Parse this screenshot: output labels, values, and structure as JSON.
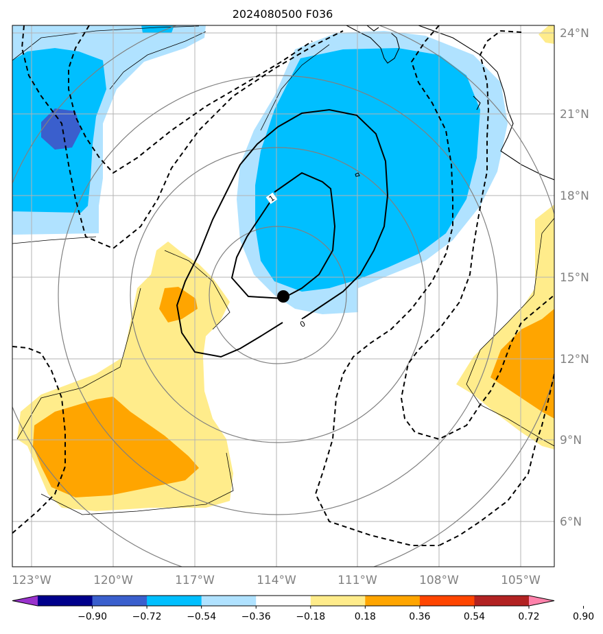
{
  "title": "2024080500 F036",
  "lat_labels": [
    "24°N",
    "21°N",
    "18°N",
    "15°N",
    "12°N",
    "9°N",
    "6°N"
  ],
  "lon_labels": [
    "123°W",
    "120°W",
    "117°W",
    "114°W",
    "111°W",
    "108°W",
    "105°W"
  ],
  "colorbar": {
    "labels": [
      "−0.90",
      "−0.72",
      "−0.54",
      "−0.36",
      "−0.18",
      "0.18",
      "0.36",
      "0.54",
      "0.72",
      "0.90"
    ],
    "colors": [
      "#9932cc",
      "#00008b",
      "#3a5fcd",
      "#00bfff",
      "#b0e2ff",
      "#ffffff",
      "#ffec8b",
      "#ffa500",
      "#ff4500",
      "#b22222",
      "#ff82ab"
    ]
  },
  "fill_colors": {
    "light_blue": "#b0e2ff",
    "blue": "#00bfff",
    "dark_blue": "#3a5fcd",
    "light_yellow": "#ffec8b",
    "orange": "#ffa500"
  },
  "contour_labels": [
    "1",
    "0"
  ],
  "center_marker": "storm-center"
}
